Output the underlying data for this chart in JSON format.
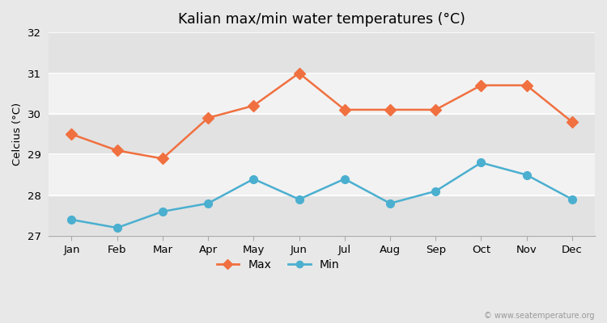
{
  "months": [
    "Jan",
    "Feb",
    "Mar",
    "Apr",
    "May",
    "Jun",
    "Jul",
    "Aug",
    "Sep",
    "Oct",
    "Nov",
    "Dec"
  ],
  "max_temps": [
    29.5,
    29.1,
    28.9,
    29.9,
    30.2,
    31.0,
    30.1,
    30.1,
    30.1,
    30.7,
    30.7,
    29.8
  ],
  "min_temps": [
    27.4,
    27.2,
    27.6,
    27.8,
    28.4,
    27.9,
    28.4,
    27.8,
    28.1,
    28.8,
    28.5,
    27.9
  ],
  "max_color": "#f07040",
  "min_color": "#4bafd0",
  "title": "Kalian max/min water temperatures (°C)",
  "ylabel": "Celcius (°C)",
  "ylim": [
    27,
    32
  ],
  "yticks": [
    27,
    28,
    29,
    30,
    31,
    32
  ],
  "bg_outer": "#e8e8e8",
  "band_light": "#f2f2f2",
  "band_dark": "#e2e2e2",
  "grid_color": "#ffffff",
  "watermark": "© www.seatemperature.org",
  "legend_max": "Max",
  "legend_min": "Min"
}
